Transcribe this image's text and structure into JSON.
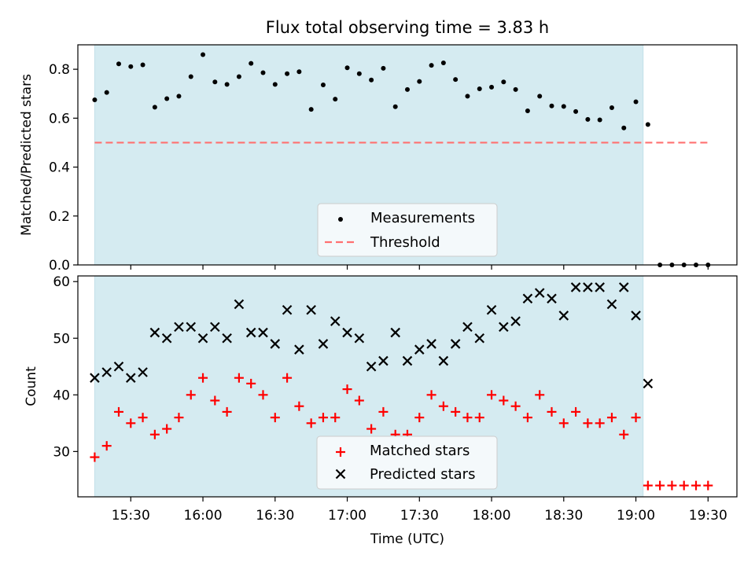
{
  "chart_data": [
    {
      "type": "scatter",
      "title": "Flux total observing time = 3.83 h",
      "xlabel": "",
      "ylabel": "Matched/Predicted stars",
      "xlim": [
        "15:08",
        "19:42"
      ],
      "ylim": [
        0.0,
        0.9
      ],
      "yticks": [
        "0.0",
        "0.2",
        "0.4",
        "0.6",
        "0.8"
      ],
      "y_tick_values": [
        0.0,
        0.2,
        0.4,
        0.6,
        0.8
      ],
      "shaded_span": [
        "15:15",
        "19:03"
      ],
      "legend_position": "lower-center",
      "series": [
        {
          "name": "Measurements",
          "marker": "dot",
          "color": "#000000",
          "x": [
            "15:15",
            "15:20",
            "15:25",
            "15:30",
            "15:35",
            "15:40",
            "15:45",
            "15:50",
            "15:55",
            "16:00",
            "16:05",
            "16:10",
            "16:15",
            "16:20",
            "16:25",
            "16:30",
            "16:35",
            "16:40",
            "16:45",
            "16:50",
            "16:55",
            "17:00",
            "17:05",
            "17:10",
            "17:15",
            "17:20",
            "17:25",
            "17:30",
            "17:35",
            "17:40",
            "17:45",
            "17:50",
            "17:55",
            "18:00",
            "18:05",
            "18:10",
            "18:15",
            "18:20",
            "18:25",
            "18:30",
            "18:35",
            "18:40",
            "18:45",
            "18:50",
            "18:55",
            "19:00",
            "19:05",
            "19:10",
            "19:15",
            "19:20",
            "19:25",
            "19:30"
          ],
          "y": [
            0.675,
            0.705,
            0.822,
            0.811,
            0.818,
            0.645,
            0.68,
            0.69,
            0.77,
            0.86,
            0.748,
            0.738,
            0.77,
            0.824,
            0.786,
            0.738,
            0.782,
            0.79,
            0.636,
            0.736,
            0.678,
            0.806,
            0.782,
            0.756,
            0.804,
            0.647,
            0.717,
            0.75,
            0.816,
            0.826,
            0.758,
            0.69,
            0.72,
            0.727,
            0.748,
            0.717,
            0.63,
            0.69,
            0.65,
            0.648,
            0.627,
            0.595,
            0.593,
            0.643,
            0.56,
            0.667,
            0.574,
            0.0,
            0.0,
            0.0,
            0.0,
            0.0
          ]
        },
        {
          "name": "Threshold",
          "marker": "dashed-line",
          "color": "#ff7070",
          "x": [
            "15:15",
            "19:30"
          ],
          "y": [
            0.5,
            0.5
          ]
        }
      ]
    },
    {
      "type": "scatter",
      "title": "",
      "xlabel": "Time (UTC)",
      "ylabel": "Count",
      "xlim": [
        "15:08",
        "19:42"
      ],
      "ylim": [
        22,
        61
      ],
      "xticks": [
        "15:30",
        "16:00",
        "16:30",
        "17:00",
        "17:30",
        "18:00",
        "18:30",
        "19:00",
        "19:30"
      ],
      "yticks": [
        "30",
        "40",
        "50",
        "60"
      ],
      "y_tick_values": [
        30,
        40,
        50,
        60
      ],
      "shaded_span": [
        "15:15",
        "19:03"
      ],
      "legend_position": "lower-center",
      "series": [
        {
          "name": "Matched stars",
          "marker": "plus",
          "color": "#ff0000",
          "x": [
            "15:15",
            "15:20",
            "15:25",
            "15:30",
            "15:35",
            "15:40",
            "15:45",
            "15:50",
            "15:55",
            "16:00",
            "16:05",
            "16:10",
            "16:15",
            "16:20",
            "16:25",
            "16:30",
            "16:35",
            "16:40",
            "16:45",
            "16:50",
            "16:55",
            "17:00",
            "17:05",
            "17:10",
            "17:15",
            "17:20",
            "17:25",
            "17:30",
            "17:35",
            "17:40",
            "17:45",
            "17:50",
            "17:55",
            "18:00",
            "18:05",
            "18:10",
            "18:15",
            "18:20",
            "18:25",
            "18:30",
            "18:35",
            "18:40",
            "18:45",
            "18:50",
            "18:55",
            "19:00",
            "19:05",
            "19:10",
            "19:15",
            "19:20",
            "19:25",
            "19:30"
          ],
          "y": [
            29,
            31,
            37,
            35,
            36,
            33,
            34,
            36,
            40,
            43,
            39,
            37,
            43,
            42,
            40,
            36,
            43,
            38,
            35,
            36,
            36,
            41,
            39,
            34,
            37,
            33,
            33,
            36,
            40,
            38,
            37,
            36,
            36,
            40,
            39,
            38,
            36,
            40,
            37,
            35,
            37,
            35,
            35,
            36,
            33,
            36,
            24,
            24,
            24,
            24,
            24,
            24
          ]
        },
        {
          "name": "Predicted stars",
          "marker": "x",
          "color": "#000000",
          "x": [
            "15:15",
            "15:20",
            "15:25",
            "15:30",
            "15:35",
            "15:40",
            "15:45",
            "15:50",
            "15:55",
            "16:00",
            "16:05",
            "16:10",
            "16:15",
            "16:20",
            "16:25",
            "16:30",
            "16:35",
            "16:40",
            "16:45",
            "16:50",
            "16:55",
            "17:00",
            "17:05",
            "17:10",
            "17:15",
            "17:20",
            "17:25",
            "17:30",
            "17:35",
            "17:40",
            "17:45",
            "17:50",
            "17:55",
            "18:00",
            "18:05",
            "18:10",
            "18:15",
            "18:20",
            "18:25",
            "18:30",
            "18:35",
            "18:40",
            "18:45",
            "18:50",
            "18:55",
            "19:00",
            "19:05"
          ],
          "y": [
            43,
            44,
            45,
            43,
            44,
            51,
            50,
            52,
            52,
            50,
            52,
            50,
            56,
            51,
            51,
            49,
            55,
            48,
            55,
            49,
            53,
            51,
            50,
            45,
            46,
            51,
            46,
            48,
            49,
            46,
            49,
            52,
            50,
            55,
            52,
            53,
            57,
            58,
            57,
            54,
            59,
            59,
            59,
            56,
            59,
            54,
            42
          ]
        }
      ]
    }
  ],
  "colors": {
    "shade": "#d5ebf1",
    "axis": "#000000",
    "legend_bg": "#f4f9fb",
    "legend_border": "#cccccc"
  }
}
